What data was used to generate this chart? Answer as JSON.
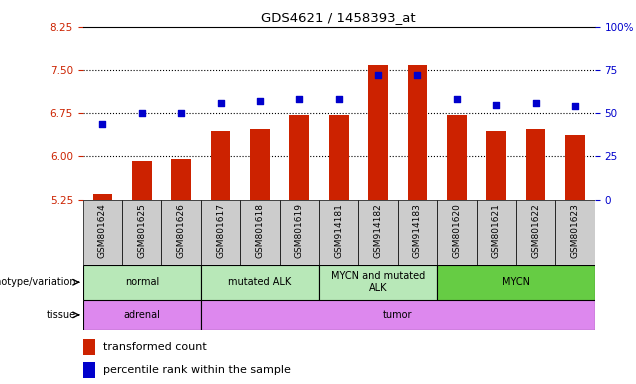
{
  "title": "GDS4621 / 1458393_at",
  "samples": [
    "GSM801624",
    "GSM801625",
    "GSM801626",
    "GSM801617",
    "GSM801618",
    "GSM801619",
    "GSM914181",
    "GSM914182",
    "GSM914183",
    "GSM801620",
    "GSM801621",
    "GSM801622",
    "GSM801623"
  ],
  "transformed_count": [
    5.35,
    5.92,
    5.95,
    6.45,
    6.48,
    6.72,
    6.72,
    7.58,
    7.58,
    6.72,
    6.45,
    6.48,
    6.38
  ],
  "percentile_rank": [
    44,
    50,
    50,
    56,
    57,
    58,
    58,
    72,
    72,
    58,
    55,
    56,
    54
  ],
  "ylim_left": [
    5.25,
    8.25
  ],
  "ylim_right": [
    0,
    100
  ],
  "yticks_left": [
    5.25,
    6.0,
    6.75,
    7.5,
    8.25
  ],
  "yticks_right": [
    0,
    25,
    50,
    75,
    100
  ],
  "hlines": [
    6.0,
    6.75,
    7.5
  ],
  "bar_color": "#cc2200",
  "dot_color": "#0000cc",
  "bar_bottom": 5.25,
  "genotype_groups": [
    {
      "label": "normal",
      "start": 0,
      "end": 3
    },
    {
      "label": "mutated ALK",
      "start": 3,
      "end": 6
    },
    {
      "label": "MYCN and mutated\nALK",
      "start": 6,
      "end": 9
    },
    {
      "label": "MYCN",
      "start": 9,
      "end": 13
    }
  ],
  "tissue_groups": [
    {
      "label": "adrenal",
      "start": 0,
      "end": 3
    },
    {
      "label": "tumor",
      "start": 3,
      "end": 13
    }
  ],
  "left_axis_color": "#cc2200",
  "right_axis_color": "#0000cc",
  "geno_color_normal": "#b8e8b8",
  "geno_color_mycn": "#66cc44",
  "tissue_color": "#dd88ee",
  "sample_box_color": "#cccccc"
}
